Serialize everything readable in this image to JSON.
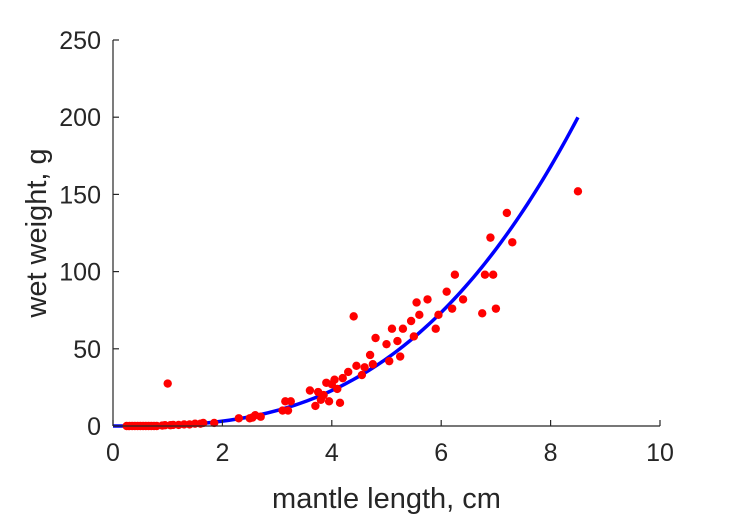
{
  "chart_data": {
    "type": "scatter",
    "title": "",
    "xlabel": "mantle length, cm",
    "ylabel": "wet weight, g",
    "xlim": [
      0,
      10
    ],
    "ylim": [
      0,
      250
    ],
    "xticks": [
      "0",
      "2",
      "4",
      "6",
      "8",
      "10"
    ],
    "yticks": [
      "0",
      "50",
      "100",
      "150",
      "200",
      "250"
    ],
    "grid": false,
    "legend": "none",
    "series": [
      {
        "kind": "scatter",
        "color": "#ff0000",
        "marker": "filled-circle",
        "points": [
          [
            0.25,
            0
          ],
          [
            0.3,
            0
          ],
          [
            0.35,
            0
          ],
          [
            0.4,
            0
          ],
          [
            0.45,
            0
          ],
          [
            0.5,
            0
          ],
          [
            0.55,
            0
          ],
          [
            0.6,
            0
          ],
          [
            0.65,
            0
          ],
          [
            0.7,
            0
          ],
          [
            0.75,
            0
          ],
          [
            0.8,
            0
          ],
          [
            0.9,
            0.3
          ],
          [
            0.95,
            0.5
          ],
          [
            1.0,
            27.5
          ],
          [
            1.05,
            0.5
          ],
          [
            1.1,
            0.7
          ],
          [
            1.2,
            0.7
          ],
          [
            1.3,
            1
          ],
          [
            1.4,
            1
          ],
          [
            1.5,
            1.5
          ],
          [
            1.6,
            1.5
          ],
          [
            1.65,
            2
          ],
          [
            1.85,
            2
          ],
          [
            2.3,
            5
          ],
          [
            2.5,
            5
          ],
          [
            2.55,
            5.5
          ],
          [
            2.6,
            7
          ],
          [
            2.7,
            6
          ],
          [
            3.1,
            10
          ],
          [
            3.15,
            16
          ],
          [
            3.2,
            10
          ],
          [
            3.25,
            16
          ],
          [
            3.6,
            23
          ],
          [
            3.7,
            13
          ],
          [
            3.75,
            22
          ],
          [
            3.8,
            17
          ],
          [
            3.85,
            20
          ],
          [
            3.9,
            28
          ],
          [
            3.95,
            16
          ],
          [
            4.0,
            27
          ],
          [
            4.05,
            30
          ],
          [
            4.1,
            24
          ],
          [
            4.15,
            15
          ],
          [
            4.2,
            31
          ],
          [
            4.3,
            35
          ],
          [
            4.4,
            71
          ],
          [
            4.45,
            39
          ],
          [
            4.55,
            33
          ],
          [
            4.6,
            38
          ],
          [
            4.7,
            46
          ],
          [
            4.75,
            40
          ],
          [
            4.8,
            57
          ],
          [
            5.0,
            53
          ],
          [
            5.05,
            42
          ],
          [
            5.1,
            63
          ],
          [
            5.2,
            55
          ],
          [
            5.25,
            45
          ],
          [
            5.3,
            63
          ],
          [
            5.45,
            68
          ],
          [
            5.5,
            58
          ],
          [
            5.55,
            80
          ],
          [
            5.6,
            72
          ],
          [
            5.75,
            82
          ],
          [
            5.9,
            63
          ],
          [
            5.95,
            72
          ],
          [
            6.1,
            87
          ],
          [
            6.2,
            76
          ],
          [
            6.25,
            98
          ],
          [
            6.4,
            82
          ],
          [
            6.75,
            73
          ],
          [
            6.8,
            98
          ],
          [
            6.9,
            122
          ],
          [
            6.95,
            98
          ],
          [
            7.0,
            76
          ],
          [
            7.2,
            138
          ],
          [
            7.3,
            119
          ],
          [
            8.5,
            152
          ]
        ]
      },
      {
        "kind": "line",
        "color": "#0000ff",
        "x_range": [
          0,
          8.5
        ],
        "curve": {
          "form": "y = a * x^b",
          "a": 0.43,
          "b": 2.87
        }
      }
    ]
  }
}
